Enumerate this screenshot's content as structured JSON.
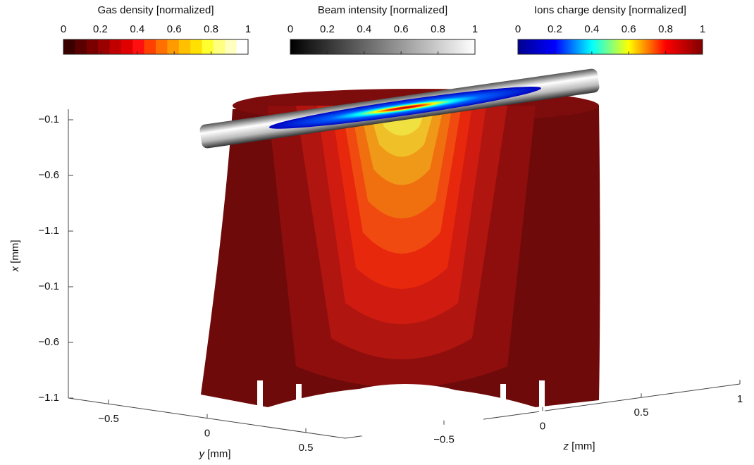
{
  "colorbars": [
    {
      "title": "Gas density [normalized]",
      "range": [
        0,
        1
      ],
      "ticks": [
        0,
        0.2,
        0.4,
        0.6,
        0.8,
        1
      ],
      "discrete": true,
      "colors": [
        "#3a0000",
        "#5a0000",
        "#7a0000",
        "#9a0000",
        "#c00000",
        "#e00000",
        "#ff1010",
        "#ff4000",
        "#ff7000",
        "#ff9a00",
        "#ffc000",
        "#ffe000",
        "#ffff30",
        "#ffff80",
        "#ffffc0",
        "#ffffff"
      ]
    },
    {
      "title": "Beam intensity [normalized]",
      "range": [
        0,
        1
      ],
      "ticks": [
        0,
        0.2,
        0.4,
        0.6,
        0.8,
        1
      ],
      "discrete": false,
      "colors": [
        "#000000",
        "#ffffff"
      ]
    },
    {
      "title": "Ions charge density [normalized]",
      "range": [
        0,
        1
      ],
      "ticks": [
        0,
        0.2,
        0.4,
        0.6,
        0.8,
        1
      ],
      "discrete": false,
      "colors": [
        "#00008f",
        "#0000ff",
        "#00ffff",
        "#ffff00",
        "#ff0000",
        "#800000"
      ]
    }
  ],
  "axes": {
    "x": {
      "variable": "x",
      "unit": "[mm]",
      "tick_labels": [
        "−0.1",
        "−0.6",
        "−1.1",
        "−0.1",
        "−0.6",
        "−1.1"
      ]
    },
    "y": {
      "variable": "y",
      "unit": "[mm]",
      "ticks": [
        {
          "value": -0.5,
          "label": "−0.5"
        },
        0,
        0.5
      ]
    },
    "z": {
      "variable": "z",
      "unit": "[mm]",
      "ticks": [
        {
          "value": -0.5,
          "label": "−0.5"
        },
        0,
        0.5,
        1
      ]
    }
  }
}
